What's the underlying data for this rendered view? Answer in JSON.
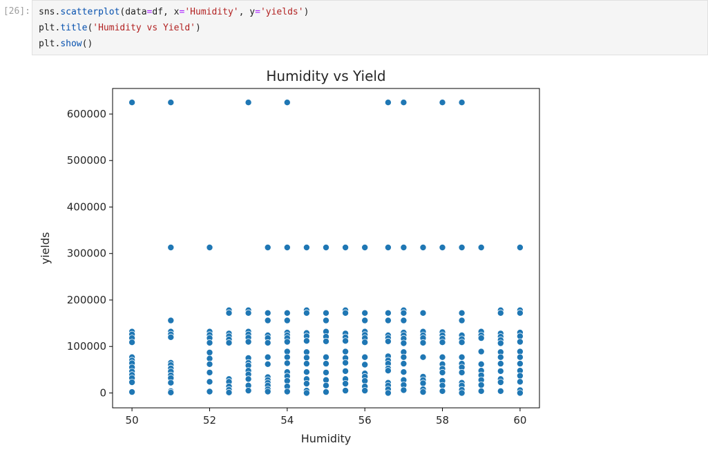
{
  "cell": {
    "prompt": "[26]:",
    "code_lines": [
      [
        {
          "t": "sns.",
          "c": ""
        },
        {
          "t": "scatterplot",
          "c": "attr"
        },
        {
          "t": "(data",
          "c": ""
        },
        {
          "t": "=",
          "c": "op"
        },
        {
          "t": "df, x",
          "c": ""
        },
        {
          "t": "=",
          "c": "op"
        },
        {
          "t": "'Humidity'",
          "c": "str"
        },
        {
          "t": ", y",
          "c": ""
        },
        {
          "t": "=",
          "c": "op"
        },
        {
          "t": "'yields'",
          "c": "str"
        },
        {
          "t": ")",
          "c": ""
        }
      ],
      [
        {
          "t": "plt.",
          "c": ""
        },
        {
          "t": "title",
          "c": "attr"
        },
        {
          "t": "(",
          "c": ""
        },
        {
          "t": "'Humidity vs Yield'",
          "c": "str"
        },
        {
          "t": ")",
          "c": ""
        }
      ],
      [
        {
          "t": "plt.",
          "c": ""
        },
        {
          "t": "show",
          "c": "attr"
        },
        {
          "t": "()",
          "c": ""
        }
      ]
    ]
  },
  "colors": {
    "point": "#1f77b4",
    "point_edge": "#ffffff",
    "axes": "#000000",
    "text": "#262626"
  },
  "chart_data": {
    "type": "scatter",
    "title": "Humidity vs Yield",
    "xlabel": "Humidity",
    "ylabel": "yields",
    "xlim": [
      49.5,
      60.5
    ],
    "ylim": [
      -32000,
      655000
    ],
    "xticks": [
      50,
      52,
      54,
      56,
      58,
      60
    ],
    "yticks": [
      0,
      100000,
      200000,
      300000,
      400000,
      500000,
      600000
    ],
    "grid": false,
    "series": [
      {
        "points": [
          [
            50,
            625000
          ],
          [
            51,
            625000
          ],
          [
            53,
            625000
          ],
          [
            54,
            625000
          ],
          [
            56.6,
            625000
          ],
          [
            57,
            625000
          ],
          [
            58,
            625000
          ],
          [
            58.5,
            625000
          ],
          [
            51,
            313000
          ],
          [
            52,
            313000
          ],
          [
            53.5,
            313000
          ],
          [
            54,
            313000
          ],
          [
            54.5,
            313000
          ],
          [
            55,
            313000
          ],
          [
            55.5,
            313000
          ],
          [
            56,
            313000
          ],
          [
            56.6,
            313000
          ],
          [
            57,
            313000
          ],
          [
            57.5,
            313000
          ],
          [
            58,
            313000
          ],
          [
            58.5,
            313000
          ],
          [
            59,
            313000
          ],
          [
            60,
            313000
          ],
          [
            52.5,
            178000
          ],
          [
            52.5,
            172000
          ],
          [
            53,
            178000
          ],
          [
            53,
            172000
          ],
          [
            53.5,
            172000
          ],
          [
            54,
            172000
          ],
          [
            54.5,
            178000
          ],
          [
            54.5,
            172000
          ],
          [
            55,
            172000
          ],
          [
            55.5,
            178000
          ],
          [
            55.5,
            172000
          ],
          [
            56,
            172000
          ],
          [
            56.6,
            172000
          ],
          [
            57,
            178000
          ],
          [
            57,
            172000
          ],
          [
            57.5,
            172000
          ],
          [
            58.5,
            172000
          ],
          [
            59.5,
            178000
          ],
          [
            59.5,
            172000
          ],
          [
            60,
            178000
          ],
          [
            60,
            172000
          ],
          [
            51,
            156000
          ],
          [
            53.5,
            156000
          ],
          [
            54,
            156000
          ],
          [
            55,
            156000
          ],
          [
            56,
            156000
          ],
          [
            56.6,
            156000
          ],
          [
            57,
            156000
          ],
          [
            58.5,
            156000
          ],
          [
            50,
            132000
          ],
          [
            50,
            126000
          ],
          [
            50,
            118000
          ],
          [
            50,
            109000
          ],
          [
            50,
            77000
          ],
          [
            50,
            70000
          ],
          [
            50,
            64000
          ],
          [
            50,
            55000
          ],
          [
            50,
            46000
          ],
          [
            50,
            39000
          ],
          [
            50,
            32000
          ],
          [
            50,
            23000
          ],
          [
            50,
            2000
          ],
          [
            51,
            132000
          ],
          [
            51,
            126000
          ],
          [
            51,
            120000
          ],
          [
            51,
            65000
          ],
          [
            51,
            60000
          ],
          [
            51,
            53000
          ],
          [
            51,
            46000
          ],
          [
            51,
            38000
          ],
          [
            51,
            32000
          ],
          [
            51,
            22000
          ],
          [
            51,
            4000
          ],
          [
            51,
            1000
          ],
          [
            52,
            132000
          ],
          [
            52,
            125000
          ],
          [
            52,
            118000
          ],
          [
            52,
            108000
          ],
          [
            52,
            87000
          ],
          [
            52,
            74000
          ],
          [
            52,
            62000
          ],
          [
            52,
            44000
          ],
          [
            52,
            24000
          ],
          [
            52,
            3000
          ],
          [
            52.5,
            128000
          ],
          [
            52.5,
            122000
          ],
          [
            52.5,
            115000
          ],
          [
            52.5,
            108000
          ],
          [
            52.5,
            30000
          ],
          [
            52.5,
            24000
          ],
          [
            52.5,
            14000
          ],
          [
            52.5,
            7000
          ],
          [
            52.5,
            1000
          ],
          [
            53,
            132000
          ],
          [
            53,
            126000
          ],
          [
            53,
            119000
          ],
          [
            53,
            110000
          ],
          [
            53,
            75000
          ],
          [
            53,
            65000
          ],
          [
            53,
            59000
          ],
          [
            53,
            48000
          ],
          [
            53,
            40000
          ],
          [
            53,
            30000
          ],
          [
            53,
            16000
          ],
          [
            53,
            5000
          ],
          [
            53.5,
            124000
          ],
          [
            53.5,
            118000
          ],
          [
            53.5,
            108000
          ],
          [
            53.5,
            77000
          ],
          [
            53.5,
            62000
          ],
          [
            53.5,
            34000
          ],
          [
            53.5,
            28000
          ],
          [
            53.5,
            22000
          ],
          [
            53.5,
            16000
          ],
          [
            53.5,
            8000
          ],
          [
            53.5,
            3000
          ],
          [
            54,
            130000
          ],
          [
            54,
            124000
          ],
          [
            54,
            118000
          ],
          [
            54,
            110000
          ],
          [
            54,
            89000
          ],
          [
            54,
            77000
          ],
          [
            54,
            64000
          ],
          [
            54,
            45000
          ],
          [
            54,
            36000
          ],
          [
            54,
            26000
          ],
          [
            54,
            14000
          ],
          [
            54,
            3000
          ],
          [
            54.5,
            129000
          ],
          [
            54.5,
            122000
          ],
          [
            54.5,
            112000
          ],
          [
            54.5,
            88000
          ],
          [
            54.5,
            76000
          ],
          [
            54.5,
            63000
          ],
          [
            54.5,
            45000
          ],
          [
            54.5,
            30000
          ],
          [
            54.5,
            20000
          ],
          [
            54.5,
            5000
          ],
          [
            54.5,
            0
          ],
          [
            55,
            132000
          ],
          [
            55,
            121000
          ],
          [
            55,
            111000
          ],
          [
            55,
            77000
          ],
          [
            55,
            63000
          ],
          [
            55,
            44000
          ],
          [
            55,
            28000
          ],
          [
            55,
            16000
          ],
          [
            55,
            2000
          ],
          [
            55.5,
            128000
          ],
          [
            55.5,
            120000
          ],
          [
            55.5,
            112000
          ],
          [
            55.5,
            89000
          ],
          [
            55.5,
            75000
          ],
          [
            55.5,
            65000
          ],
          [
            55.5,
            47000
          ],
          [
            55.5,
            30000
          ],
          [
            55.5,
            20000
          ],
          [
            55.5,
            5000
          ],
          [
            56,
            132000
          ],
          [
            56,
            125000
          ],
          [
            56,
            118000
          ],
          [
            56,
            109000
          ],
          [
            56,
            77000
          ],
          [
            56,
            61000
          ],
          [
            56,
            42000
          ],
          [
            56,
            35000
          ],
          [
            56,
            26000
          ],
          [
            56,
            14000
          ],
          [
            56,
            5000
          ],
          [
            56.6,
            124000
          ],
          [
            56.6,
            118000
          ],
          [
            56.6,
            111000
          ],
          [
            56.6,
            79000
          ],
          [
            56.6,
            70000
          ],
          [
            56.6,
            63000
          ],
          [
            56.6,
            53000
          ],
          [
            56.6,
            48000
          ],
          [
            56.6,
            22000
          ],
          [
            56.6,
            16000
          ],
          [
            56.6,
            8000
          ],
          [
            56.6,
            0
          ],
          [
            57,
            130000
          ],
          [
            57,
            124000
          ],
          [
            57,
            117000
          ],
          [
            57,
            107000
          ],
          [
            57,
            88000
          ],
          [
            57,
            77000
          ],
          [
            57,
            63000
          ],
          [
            57,
            45000
          ],
          [
            57,
            28000
          ],
          [
            57,
            17000
          ],
          [
            57,
            6000
          ],
          [
            57.5,
            132000
          ],
          [
            57.5,
            124000
          ],
          [
            57.5,
            118000
          ],
          [
            57.5,
            108000
          ],
          [
            57.5,
            77000
          ],
          [
            57.5,
            35000
          ],
          [
            57.5,
            28000
          ],
          [
            57.5,
            21000
          ],
          [
            57.5,
            8000
          ],
          [
            57.5,
            2000
          ],
          [
            58,
            131000
          ],
          [
            58,
            124000
          ],
          [
            58,
            117000
          ],
          [
            58,
            109000
          ],
          [
            58,
            77000
          ],
          [
            58,
            62000
          ],
          [
            58,
            52000
          ],
          [
            58,
            44000
          ],
          [
            58,
            26000
          ],
          [
            58,
            16000
          ],
          [
            58,
            4000
          ],
          [
            58.5,
            124000
          ],
          [
            58.5,
            116000
          ],
          [
            58.5,
            109000
          ],
          [
            58.5,
            77000
          ],
          [
            58.5,
            63000
          ],
          [
            58.5,
            55000
          ],
          [
            58.5,
            44000
          ],
          [
            58.5,
            22000
          ],
          [
            58.5,
            16000
          ],
          [
            58.5,
            7000
          ],
          [
            58.5,
            0
          ],
          [
            59,
            132000
          ],
          [
            59,
            124000
          ],
          [
            59,
            118000
          ],
          [
            59,
            89000
          ],
          [
            59,
            62000
          ],
          [
            59,
            48000
          ],
          [
            59,
            38000
          ],
          [
            59,
            28000
          ],
          [
            59,
            17000
          ],
          [
            59,
            4000
          ],
          [
            59.5,
            128000
          ],
          [
            59.5,
            121000
          ],
          [
            59.5,
            114000
          ],
          [
            59.5,
            107000
          ],
          [
            59.5,
            88000
          ],
          [
            59.5,
            77000
          ],
          [
            59.5,
            63000
          ],
          [
            59.5,
            47000
          ],
          [
            59.5,
            30000
          ],
          [
            59.5,
            23000
          ],
          [
            59.5,
            4000
          ],
          [
            60,
            130000
          ],
          [
            60,
            122000
          ],
          [
            60,
            110000
          ],
          [
            60,
            89000
          ],
          [
            60,
            77000
          ],
          [
            60,
            63000
          ],
          [
            60,
            48000
          ],
          [
            60,
            37000
          ],
          [
            60,
            24000
          ],
          [
            60,
            6000
          ],
          [
            60,
            0
          ]
        ]
      }
    ]
  }
}
